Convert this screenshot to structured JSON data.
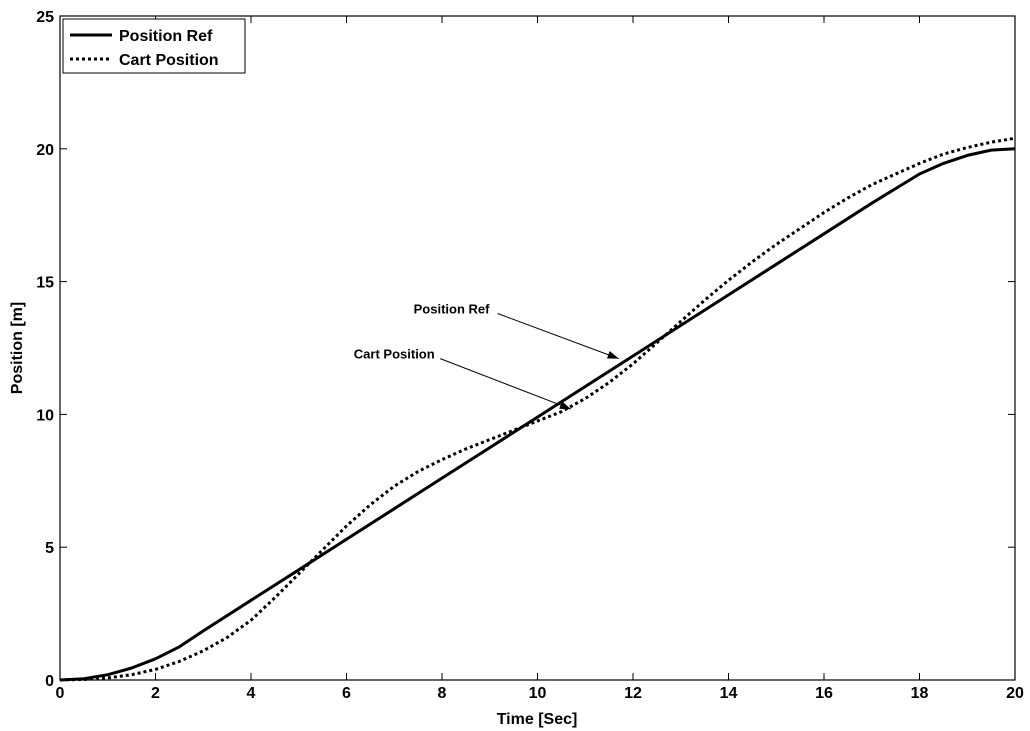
{
  "chart_data": {
    "type": "line",
    "xlabel": "Time [Sec]",
    "ylabel": "Position [m]",
    "xlim": [
      0,
      20
    ],
    "ylim": [
      0,
      25
    ],
    "xticks": [
      "0",
      "2",
      "4",
      "6",
      "8",
      "10",
      "12",
      "14",
      "16",
      "18",
      "20"
    ],
    "yticks": [
      "0",
      "5",
      "10",
      "15",
      "20",
      "25"
    ],
    "grid": false,
    "legend_position": "top-left",
    "series": [
      {
        "name": "Position Ref",
        "style": "solid",
        "color": "#000000",
        "x": [
          0,
          0.5,
          1,
          1.5,
          2,
          2.5,
          3,
          4,
          5,
          6,
          7,
          8,
          9,
          10,
          11,
          12,
          13,
          14,
          15,
          16,
          17,
          17.5,
          18,
          18.5,
          19,
          19.5,
          20
        ],
        "y": [
          0,
          0.05,
          0.2,
          0.45,
          0.8,
          1.25,
          1.85,
          3.0,
          4.15,
          5.3,
          6.45,
          7.6,
          8.75,
          9.9,
          11.05,
          12.2,
          13.35,
          14.5,
          15.65,
          16.8,
          17.95,
          18.5,
          19.05,
          19.45,
          19.75,
          19.95,
          20.0
        ]
      },
      {
        "name": "Cart Position",
        "style": "dotted",
        "color": "#000000",
        "x": [
          0,
          0.5,
          1,
          1.5,
          2,
          2.5,
          3,
          3.5,
          4,
          4.5,
          5,
          5.5,
          6,
          6.5,
          7,
          7.5,
          8,
          8.5,
          9,
          9.5,
          10,
          10.5,
          11,
          11.5,
          12,
          12.5,
          13,
          13.5,
          14,
          14.5,
          15,
          15.5,
          16,
          16.5,
          17,
          17.5,
          18,
          18.5,
          19,
          19.5,
          20
        ],
        "y": [
          0,
          0.02,
          0.08,
          0.2,
          0.4,
          0.7,
          1.1,
          1.6,
          2.25,
          3.1,
          4.0,
          4.9,
          5.8,
          6.6,
          7.3,
          7.85,
          8.3,
          8.7,
          9.05,
          9.4,
          9.75,
          10.1,
          10.6,
          11.2,
          11.9,
          12.7,
          13.5,
          14.3,
          15.05,
          15.75,
          16.4,
          17.0,
          17.6,
          18.15,
          18.65,
          19.05,
          19.45,
          19.8,
          20.05,
          20.25,
          20.4
        ]
      }
    ],
    "legend": [
      "Position Ref",
      "Cart Position"
    ],
    "annotations": [
      {
        "text": "Position Ref",
        "target_x": 11.7,
        "target_y": 12.1,
        "label_x": 8.2,
        "label_y": 13.8
      },
      {
        "text": "Cart Position",
        "target_x": 10.7,
        "target_y": 10.2,
        "label_x": 7.0,
        "label_y": 12.1
      }
    ]
  }
}
